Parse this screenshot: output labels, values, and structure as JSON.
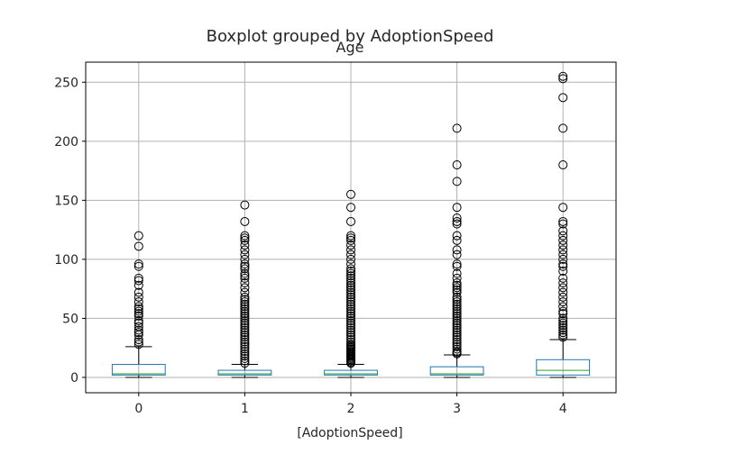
{
  "chart_data": {
    "type": "boxplot",
    "suptitle": "Boxplot grouped by AdoptionSpeed",
    "title": "Age",
    "xlabel": "[AdoptionSpeed]",
    "ylabel": "",
    "categories": [
      "0",
      "1",
      "2",
      "3",
      "4"
    ],
    "ylim": [
      -13,
      267
    ],
    "yticks": [
      0,
      50,
      100,
      150,
      200,
      250
    ],
    "grid": true,
    "colors": {
      "box": "#1f77b4",
      "median": "#2ca02c",
      "whisker": "#000000",
      "flier": "#000000",
      "grid": "#b0b0b0"
    },
    "boxes": [
      {
        "name": "0",
        "whislo": 0,
        "q1": 2,
        "med": 3,
        "q3": 11,
        "whishi": 26,
        "fliers": [
          28,
          30,
          32,
          36,
          38,
          40,
          43,
          46,
          48,
          52,
          54,
          56,
          58,
          60,
          64,
          68,
          72,
          78,
          82,
          84,
          94,
          96,
          111,
          120
        ]
      },
      {
        "name": "1",
        "whislo": 0,
        "q1": 2,
        "med": 3,
        "q3": 6,
        "whishi": 11,
        "fliers": [
          12,
          14,
          16,
          18,
          20,
          22,
          24,
          26,
          28,
          30,
          32,
          34,
          36,
          38,
          40,
          42,
          44,
          46,
          48,
          50,
          52,
          54,
          56,
          58,
          60,
          62,
          64,
          66,
          68,
          72,
          76,
          80,
          84,
          86,
          88,
          92,
          94,
          96,
          100,
          104,
          108,
          112,
          116,
          118,
          120,
          132,
          146
        ]
      },
      {
        "name": "2",
        "whislo": 0,
        "q1": 2,
        "med": 3,
        "q3": 6,
        "whishi": 11,
        "fliers": [
          12,
          13,
          14,
          15,
          16,
          17,
          18,
          19,
          20,
          21,
          22,
          23,
          24,
          25,
          26,
          27,
          28,
          30,
          32,
          34,
          36,
          38,
          40,
          42,
          44,
          46,
          48,
          50,
          52,
          54,
          56,
          58,
          60,
          62,
          64,
          66,
          68,
          70,
          72,
          74,
          76,
          78,
          80,
          82,
          84,
          86,
          88,
          90,
          92,
          96,
          100,
          104,
          108,
          112,
          116,
          118,
          120,
          132,
          144,
          155
        ]
      },
      {
        "name": "3",
        "whislo": 0,
        "q1": 2,
        "med": 3,
        "q3": 9,
        "whishi": 19,
        "fliers": [
          20,
          21,
          22,
          24,
          26,
          28,
          30,
          32,
          34,
          36,
          38,
          40,
          42,
          44,
          46,
          48,
          50,
          52,
          54,
          56,
          58,
          60,
          62,
          64,
          66,
          68,
          72,
          74,
          76,
          78,
          80,
          84,
          88,
          94,
          96,
          104,
          108,
          116,
          120,
          130,
          132,
          135,
          144,
          166,
          180,
          211
        ]
      },
      {
        "name": "4",
        "whislo": 0,
        "q1": 2,
        "med": 6,
        "q3": 15,
        "whishi": 32,
        "fliers": [
          34,
          36,
          38,
          40,
          42,
          44,
          46,
          48,
          50,
          54,
          56,
          60,
          64,
          68,
          72,
          76,
          80,
          84,
          90,
          94,
          96,
          100,
          104,
          108,
          112,
          116,
          120,
          124,
          130,
          132,
          144,
          180,
          211,
          237,
          253,
          255
        ]
      }
    ]
  }
}
